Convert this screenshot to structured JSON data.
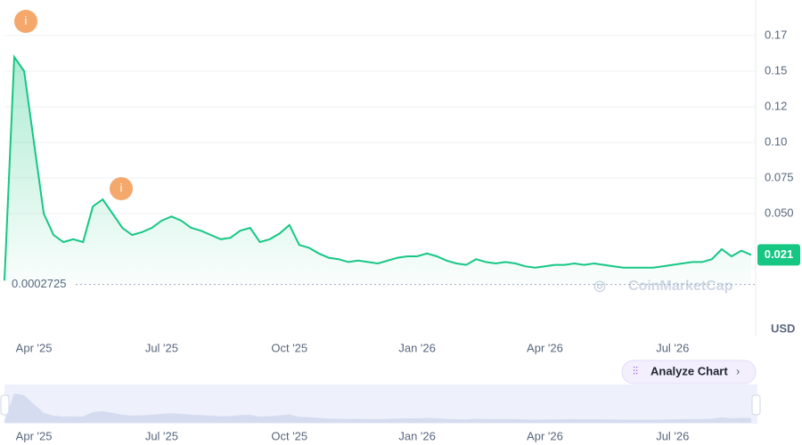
{
  "chart_data": {
    "type": "line",
    "categories": [
      null,
      null,
      null,
      "Apr '25",
      null,
      null,
      null,
      null,
      null,
      null,
      null,
      null,
      null,
      null,
      null,
      null,
      "Jul '25",
      null,
      null,
      null,
      null,
      null,
      null,
      null,
      null,
      null,
      null,
      null,
      null,
      "Oct '25",
      null,
      null,
      null,
      null,
      null,
      null,
      null,
      null,
      null,
      null,
      null,
      null,
      "Jan '26",
      null,
      null,
      null,
      null,
      null,
      null,
      null,
      null,
      null,
      null,
      null,
      null,
      "Apr '26",
      null,
      null,
      null,
      null,
      null,
      null,
      null,
      null,
      null,
      null,
      null,
      null,
      "Jul '26",
      null,
      null,
      null,
      null,
      null,
      null,
      null,
      null
    ],
    "values": [
      0.003,
      0.16,
      0.15,
      0.1,
      0.05,
      0.035,
      0.03,
      0.032,
      0.03,
      0.055,
      0.06,
      0.05,
      0.04,
      0.035,
      0.037,
      0.04,
      0.045,
      0.048,
      0.045,
      0.04,
      0.038,
      0.035,
      0.032,
      0.033,
      0.038,
      0.04,
      0.03,
      0.032,
      0.036,
      0.042,
      0.028,
      0.026,
      0.022,
      0.019,
      0.018,
      0.016,
      0.017,
      0.016,
      0.015,
      0.017,
      0.019,
      0.02,
      0.02,
      0.022,
      0.02,
      0.017,
      0.015,
      0.014,
      0.018,
      0.016,
      0.015,
      0.016,
      0.015,
      0.013,
      0.012,
      0.013,
      0.014,
      0.014,
      0.015,
      0.014,
      0.015,
      0.014,
      0.013,
      0.012,
      0.012,
      0.012,
      0.012,
      0.013,
      0.014,
      0.015,
      0.016,
      0.016,
      0.018,
      0.025,
      0.02,
      0.024,
      0.021
    ],
    "color": "#16c784",
    "ylim": [
      0,
      0.2
    ],
    "yticks": [
      {
        "value": 0.175,
        "label": "0.17"
      },
      0.15,
      {
        "value": 0.125,
        "label": "0.12"
      },
      {
        "value": 0.1,
        "label": "0.10"
      },
      0.075,
      {
        "value": 0.05,
        "label": "0.050"
      }
    ],
    "grid": true,
    "reference_line": 0.0002725,
    "current_price": 0.021,
    "currency": "USD",
    "annotations": [
      "i",
      "i"
    ],
    "watermark": "CoinMarketCap",
    "button": "Analyze Chart"
  }
}
